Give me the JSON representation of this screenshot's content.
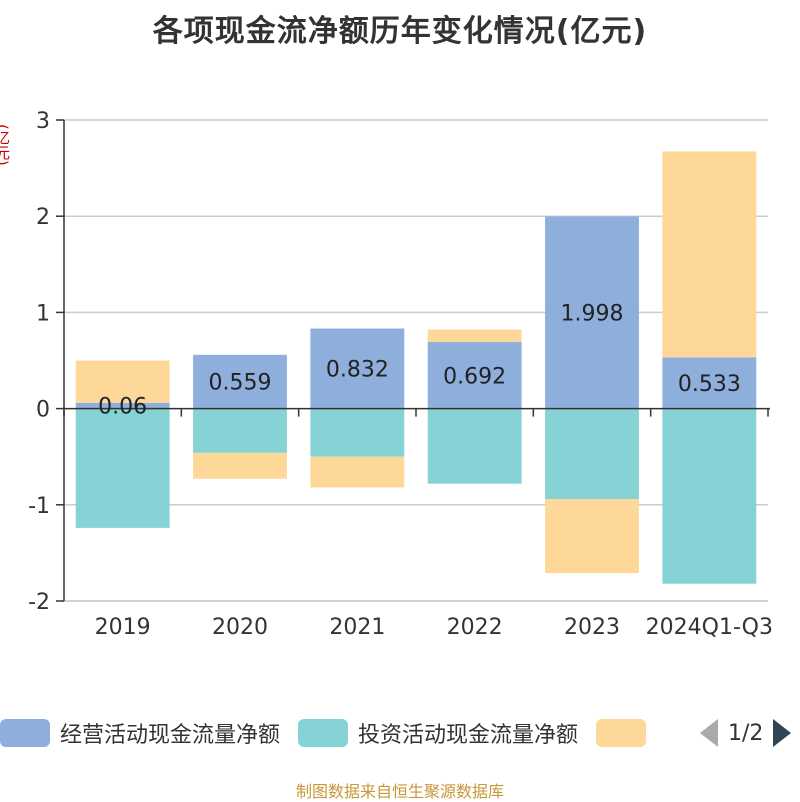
{
  "title": "各项现金流净额历年变化情况(亿元)",
  "y_unit": "(亿元)",
  "legend": {
    "items": [
      {
        "label": "经营活动现金流量净额",
        "color": "#8eaedb"
      },
      {
        "label": "投资活动现金流量净额",
        "color": "#86d3d6"
      },
      {
        "label": "",
        "color": "#fdd899"
      }
    ],
    "page": "1/2"
  },
  "footer": "制图数据来自恒生聚源数据库",
  "chart_data": {
    "type": "bar",
    "stacked": true,
    "title": "各项现金流净额历年变化情况(亿元)",
    "ylabel": "(亿元)",
    "ylim": [
      -2,
      3
    ],
    "yticks": [
      3,
      2,
      1,
      0,
      -1,
      -2
    ],
    "grid": true,
    "legend_position": "bottom",
    "categories": [
      "2019",
      "2020",
      "2021",
      "2022",
      "2023",
      "2024Q1-Q3"
    ],
    "series": [
      {
        "name": "经营活动现金流量净额",
        "color": "#8eaedb",
        "values": [
          0.06,
          0.559,
          0.832,
          0.692,
          1.998,
          0.533
        ],
        "labels": [
          "0.06",
          "0.559",
          "0.832",
          "0.692",
          "1.998",
          "0.533"
        ]
      },
      {
        "name": "投资活动现金流量净额",
        "color": "#86d3d6",
        "values": [
          -1.24,
          -0.46,
          -0.5,
          -0.78,
          -0.94,
          -1.82
        ]
      },
      {
        "name": "",
        "color": "#fdd899",
        "values": [
          0.44,
          -0.27,
          -0.32,
          0.13,
          -0.77,
          2.14
        ]
      }
    ]
  }
}
